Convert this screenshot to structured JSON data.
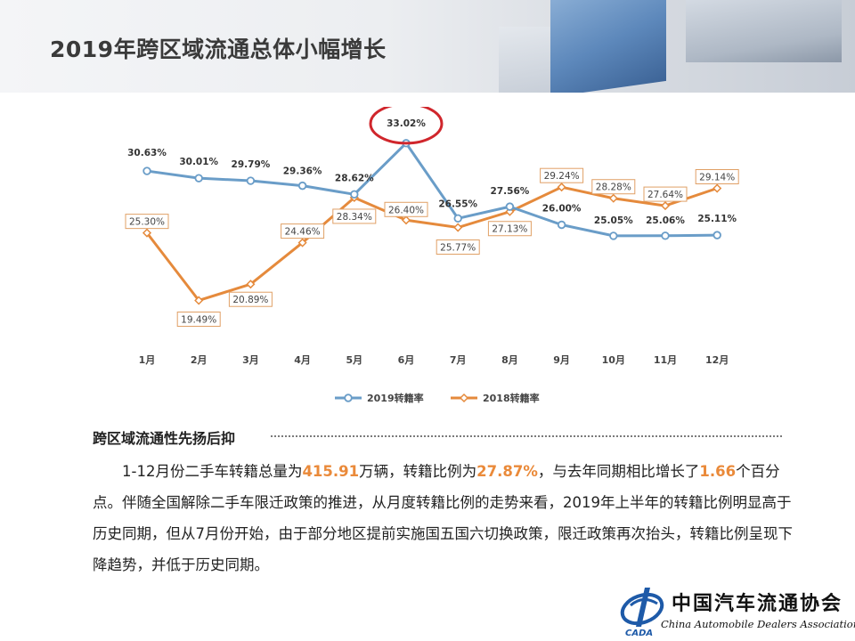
{
  "page_title": "2019年跨区域流通总体小幅增长",
  "section_heading": "跨区域流通性先扬后抑",
  "paragraph": {
    "t1": "1-12月份二手车转籍总量为",
    "h1": "415.91",
    "t2": "万辆，转籍比例为",
    "h2": "27.87%",
    "t3": "，与去年同期相比增长了",
    "h3": "1.66",
    "t4": "个百分点。伴随全国解除二手车限迁政策的推进，从月度转籍比例的走势来看，2019年上半年的转籍比例明显高于历史同期，但从7月份开始，由于部分地区提前实施国五国六切换政策，限迁政策再次抬头，转籍比例呈现下降趋势，并低于历史同期。"
  },
  "logo": {
    "cn": "中国汽车流通协会",
    "en": "China Automobile Dealers Association",
    "mark_text": "CADA"
  },
  "chart_data": {
    "type": "line",
    "categories": [
      "1月",
      "2月",
      "3月",
      "4月",
      "5月",
      "6月",
      "7月",
      "8月",
      "9月",
      "10月",
      "11月",
      "12月"
    ],
    "series": [
      {
        "name": "2019转籍率",
        "color": "#6a9dc8",
        "values": [
          30.63,
          30.01,
          29.79,
          29.36,
          28.62,
          33.02,
          26.55,
          27.56,
          26.0,
          25.05,
          25.06,
          25.11
        ],
        "labels": [
          "30.63%",
          "30.01%",
          "29.79%",
          "29.36%",
          "28.62%",
          "33.02%",
          "26.55%",
          "27.56%",
          "26.00%",
          "25.05%",
          "25.06%",
          "25.11%"
        ]
      },
      {
        "name": "2018转籍率",
        "color": "#e58a3c",
        "values": [
          25.3,
          19.49,
          20.89,
          24.46,
          28.34,
          26.4,
          25.77,
          27.13,
          29.24,
          28.28,
          27.64,
          29.14
        ],
        "labels": [
          "25.30%",
          "19.49%",
          "20.89%",
          "24.46%",
          "28.34%",
          "26.40%",
          "25.77%",
          "27.13%",
          "29.24%",
          "28.28%",
          "27.64%",
          "29.14%"
        ]
      }
    ],
    "ylim": [
      17,
      35
    ],
    "grid": false,
    "legend_position": "bottom",
    "highlight": {
      "series": 0,
      "category": "6月",
      "color": "#d0262c"
    }
  }
}
